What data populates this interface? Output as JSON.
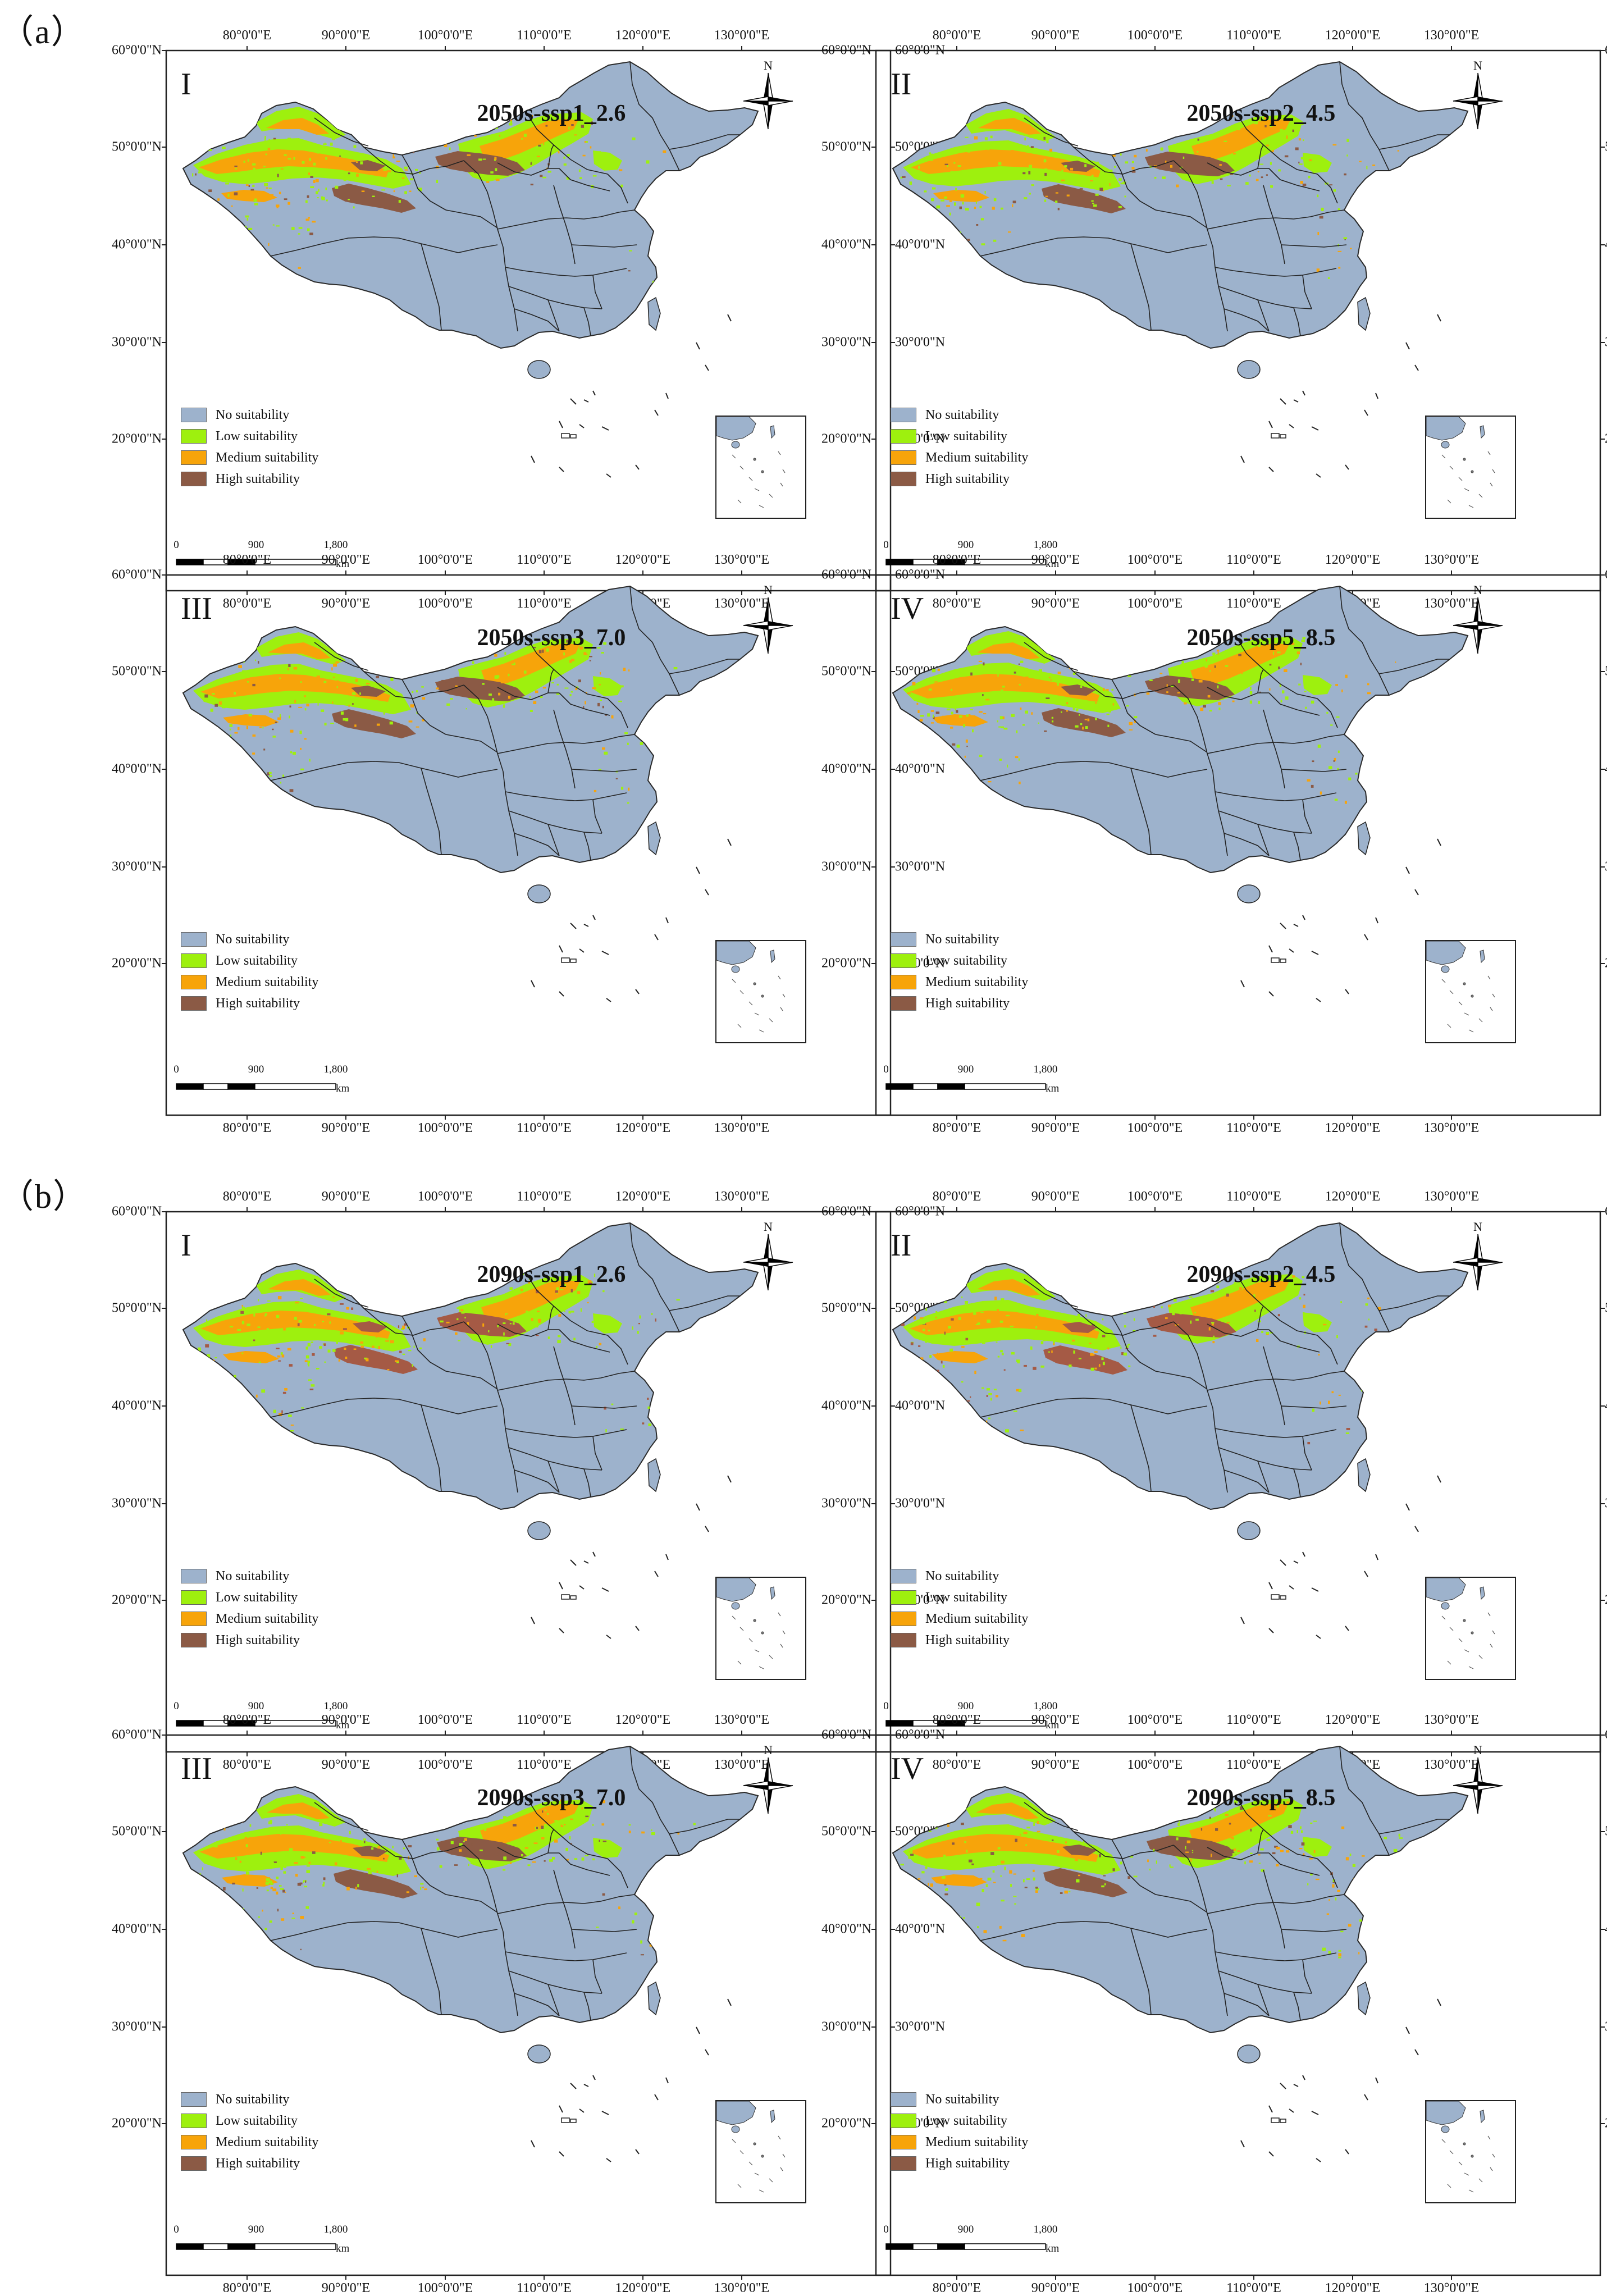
{
  "figure": {
    "sections": [
      {
        "label": "（a）",
        "panels": [
          {
            "numeral": "I",
            "title": "2050s-ssp1_2.6"
          },
          {
            "numeral": "II",
            "title": "2050s-ssp2_4.5"
          },
          {
            "numeral": "III",
            "title": "2050s-ssp3_7.0"
          },
          {
            "numeral": "IV",
            "title": "2050s-ssp5_8.5"
          }
        ]
      },
      {
        "label": "（b）",
        "panels": [
          {
            "numeral": "I",
            "title": "2090s-ssp1_2.6"
          },
          {
            "numeral": "II",
            "title": "2090s-ssp2_4.5"
          },
          {
            "numeral": "III",
            "title": "2090s-ssp3_7.0"
          },
          {
            "numeral": "IV",
            "title": "2090s-ssp5_8.5"
          }
        ]
      }
    ],
    "lon_ticks": [
      "80°0'0\"E",
      "90°0'0\"E",
      "100°0'0\"E",
      "110°0'0\"E",
      "120°0'0\"E",
      "130°0'0\"E"
    ],
    "lat_ticks": [
      "60°0'0\"N",
      "50°0'0\"N",
      "40°0'0\"N",
      "30°0'0\"N",
      "20°0'0\"N"
    ],
    "legend": [
      {
        "label": "No suitability",
        "color": "#9db2cc"
      },
      {
        "label": "Low suitability",
        "color": "#9ef00e"
      },
      {
        "label": "Medium suitability",
        "color": "#f7a40a"
      },
      {
        "label": "High suitability",
        "color": "#8b5a45"
      }
    ],
    "scale": {
      "labels": [
        "0",
        "900",
        "1,800"
      ],
      "unit": "km"
    },
    "north_label": "N"
  }
}
